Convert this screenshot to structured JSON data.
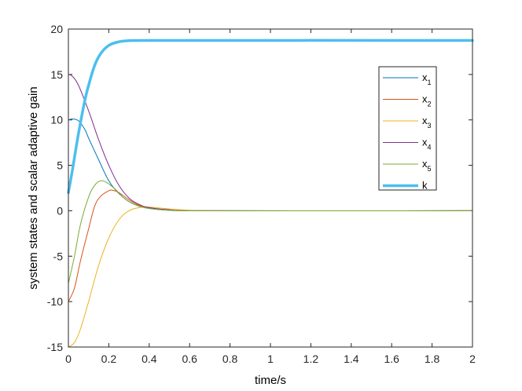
{
  "chart_data": {
    "type": "line",
    "xlabel": "time/s",
    "ylabel": "system states and scalar adaptive gain",
    "xlim": [
      0,
      2
    ],
    "ylim": [
      -15,
      20
    ],
    "xticks": [
      "0",
      "0.2",
      "0.4",
      "0.6",
      "0.8",
      "1",
      "1.2",
      "1.4",
      "1.6",
      "1.8",
      "2"
    ],
    "yticks": [
      "-15",
      "-10",
      "-5",
      "0",
      "5",
      "10",
      "15",
      "20"
    ],
    "grid": false,
    "legend_position": "top-right",
    "series": [
      {
        "name": "x",
        "sub": "1",
        "color": "#0072BD",
        "width": 1,
        "points": [
          [
            0,
            10
          ],
          [
            0.02,
            10.1
          ],
          [
            0.05,
            9.9
          ],
          [
            0.08,
            9.0
          ],
          [
            0.1,
            8.0
          ],
          [
            0.15,
            5.6
          ],
          [
            0.2,
            3.3
          ],
          [
            0.25,
            1.9
          ],
          [
            0.3,
            1.0
          ],
          [
            0.35,
            0.5
          ],
          [
            0.4,
            0.25
          ],
          [
            0.5,
            0.05
          ],
          [
            0.6,
            0.0
          ],
          [
            2,
            0
          ]
        ]
      },
      {
        "name": "x",
        "sub": "2",
        "color": "#D95319",
        "width": 1,
        "points": [
          [
            0,
            -10
          ],
          [
            0.03,
            -8.5
          ],
          [
            0.06,
            -5.5
          ],
          [
            0.1,
            -2.0
          ],
          [
            0.13,
            0.5
          ],
          [
            0.16,
            1.6
          ],
          [
            0.2,
            2.2
          ],
          [
            0.22,
            2.25
          ],
          [
            0.25,
            2.0
          ],
          [
            0.3,
            1.2
          ],
          [
            0.35,
            0.6
          ],
          [
            0.4,
            0.3
          ],
          [
            0.5,
            0.1
          ],
          [
            0.6,
            0.0
          ],
          [
            2,
            0
          ]
        ]
      },
      {
        "name": "x",
        "sub": "3",
        "color": "#EDB120",
        "width": 1,
        "points": [
          [
            0,
            -15
          ],
          [
            0.03,
            -14.5
          ],
          [
            0.06,
            -13
          ],
          [
            0.1,
            -10
          ],
          [
            0.15,
            -6
          ],
          [
            0.2,
            -3.0
          ],
          [
            0.25,
            -1.0
          ],
          [
            0.3,
            0.0
          ],
          [
            0.35,
            0.35
          ],
          [
            0.4,
            0.4
          ],
          [
            0.5,
            0.2
          ],
          [
            0.6,
            0.05
          ],
          [
            0.7,
            0.0
          ],
          [
            2,
            0
          ]
        ]
      },
      {
        "name": "x",
        "sub": "4",
        "color": "#7E2F8E",
        "width": 1,
        "points": [
          [
            0,
            15
          ],
          [
            0.02,
            14.8
          ],
          [
            0.05,
            13.8
          ],
          [
            0.1,
            11.0
          ],
          [
            0.15,
            7.8
          ],
          [
            0.2,
            5.0
          ],
          [
            0.25,
            2.8
          ],
          [
            0.3,
            1.4
          ],
          [
            0.35,
            0.7
          ],
          [
            0.4,
            0.35
          ],
          [
            0.5,
            0.1
          ],
          [
            0.6,
            0.0
          ],
          [
            2,
            0
          ]
        ]
      },
      {
        "name": "x",
        "sub": "5",
        "color": "#77AC30",
        "width": 1,
        "points": [
          [
            0,
            -8
          ],
          [
            0.03,
            -5
          ],
          [
            0.06,
            -1.5
          ],
          [
            0.1,
            1.5
          ],
          [
            0.13,
            2.8
          ],
          [
            0.16,
            3.3
          ],
          [
            0.19,
            3.1
          ],
          [
            0.23,
            2.4
          ],
          [
            0.27,
            1.5
          ],
          [
            0.3,
            1.0
          ],
          [
            0.35,
            0.5
          ],
          [
            0.4,
            0.25
          ],
          [
            0.5,
            0.05
          ],
          [
            0.6,
            0.0
          ],
          [
            2,
            0
          ]
        ]
      },
      {
        "name": "k",
        "sub": "",
        "color": "#4DBEEE",
        "width": 3.5,
        "points": [
          [
            0,
            2
          ],
          [
            0.02,
            4.5
          ],
          [
            0.05,
            8.5
          ],
          [
            0.08,
            12
          ],
          [
            0.1,
            13.8
          ],
          [
            0.13,
            16.0
          ],
          [
            0.16,
            17.3
          ],
          [
            0.2,
            18.2
          ],
          [
            0.25,
            18.6
          ],
          [
            0.3,
            18.72
          ],
          [
            0.4,
            18.75
          ],
          [
            2,
            18.75
          ]
        ]
      }
    ]
  }
}
